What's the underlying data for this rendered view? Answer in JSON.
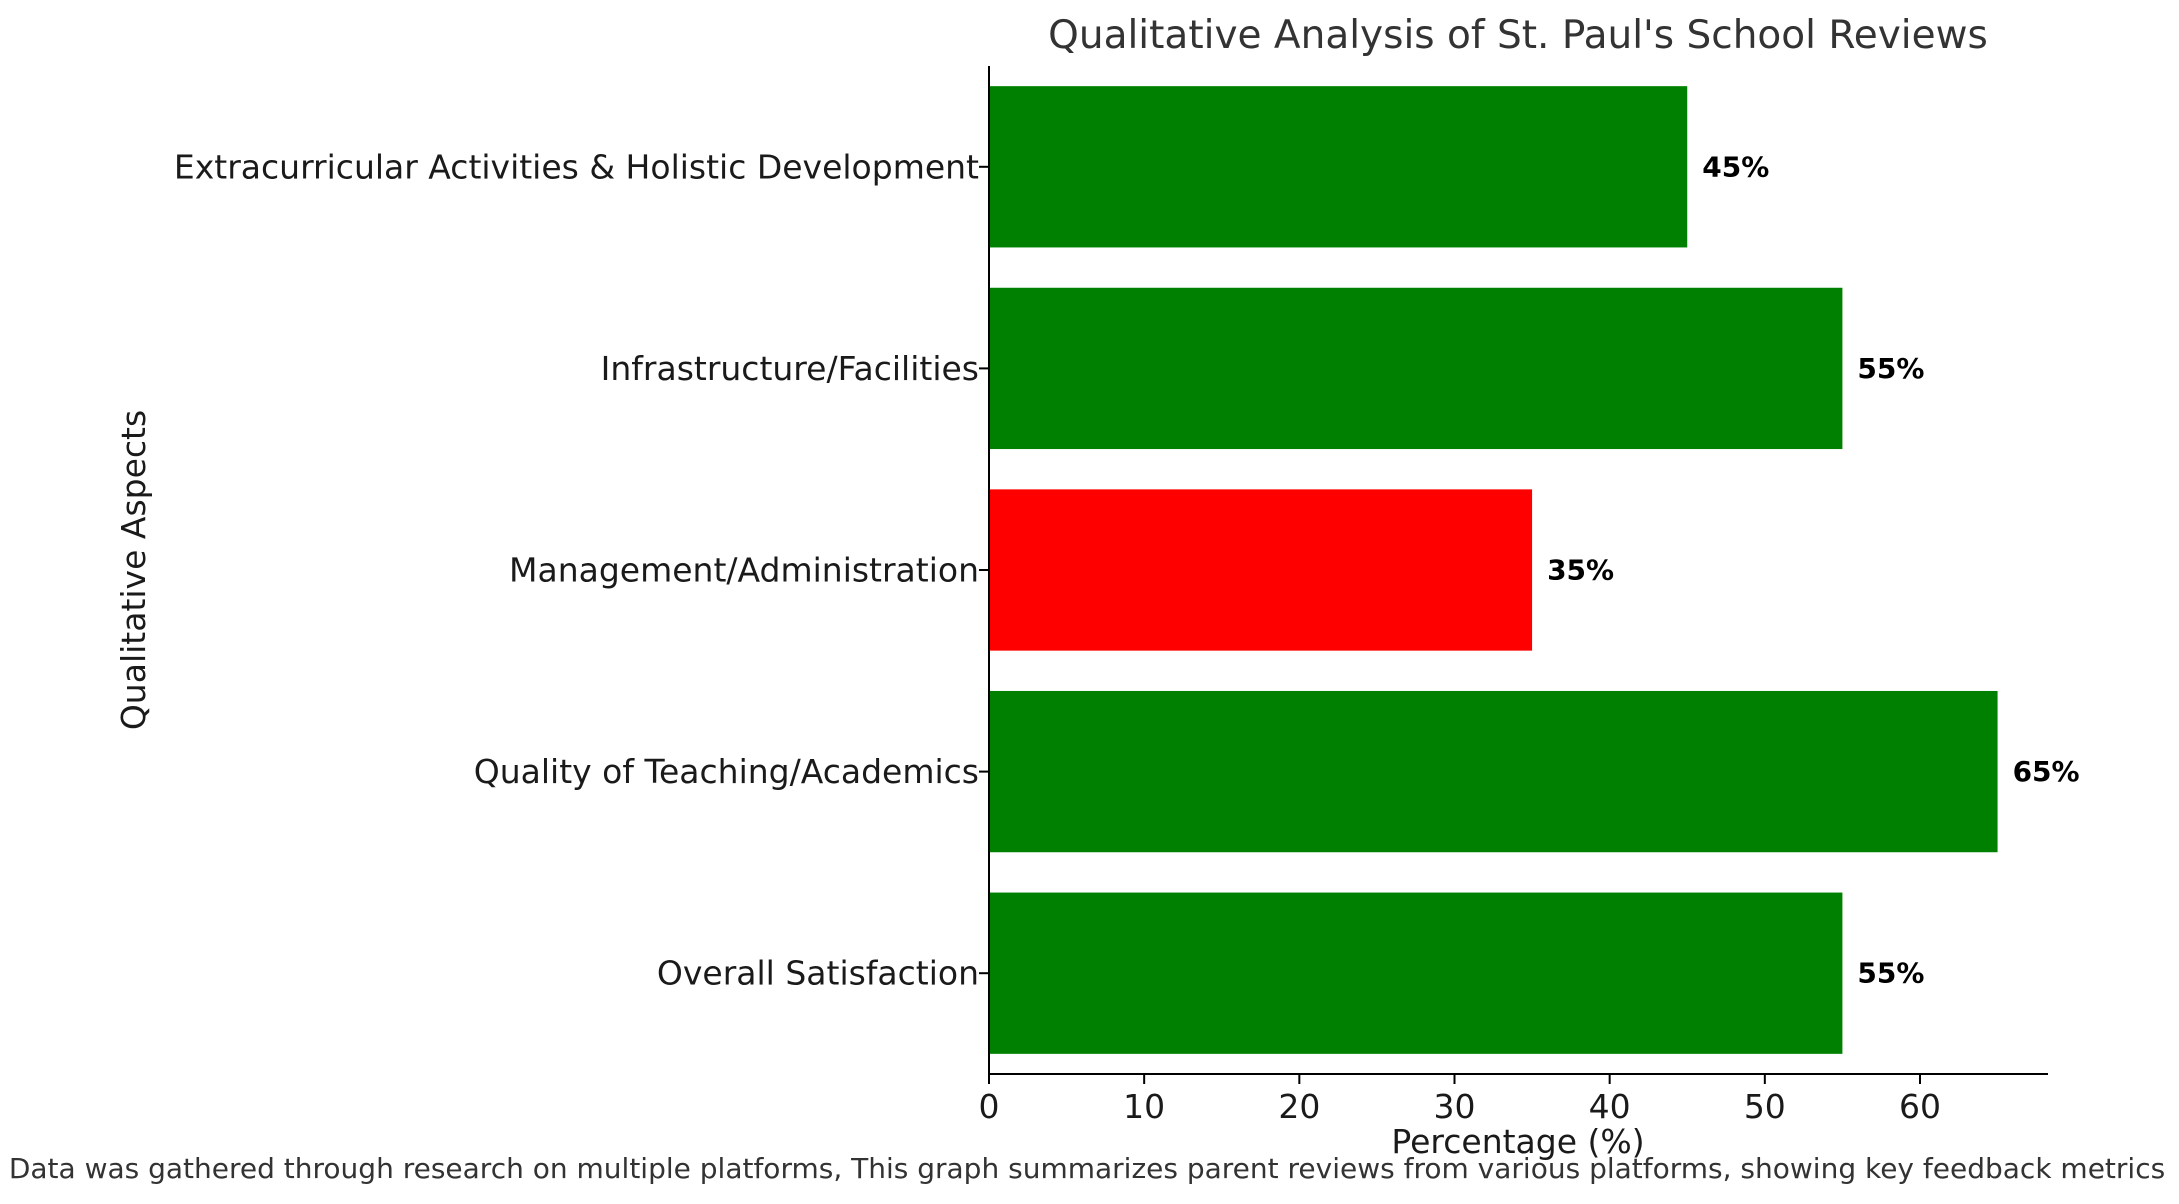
{
  "chart_data": {
    "type": "bar",
    "orientation": "horizontal",
    "title": "Qualitative Analysis of St. Paul's School Reviews",
    "xlabel": "Percentage (%)",
    "ylabel": "Qualitative Aspects",
    "categories": [
      "Overall Satisfaction",
      "Quality of Teaching/Academics",
      "Management/Administration",
      "Infrastructure/Facilities",
      "Extracurricular Activities & Holistic Development"
    ],
    "values": [
      55,
      65,
      35,
      55,
      45
    ],
    "value_labels": [
      "55%",
      "65%",
      "35%",
      "55%",
      "45%"
    ],
    "bar_colors": [
      "#008000",
      "#008000",
      "#ff0000",
      "#008000",
      "#008000"
    ],
    "xlim": [
      0,
      68.25
    ],
    "xticks": [
      0,
      10,
      20,
      30,
      40,
      50,
      60
    ],
    "grid": false,
    "legend": "none"
  },
  "footnote": "Data was gathered through research on multiple platforms, This graph summarizes parent reviews from various platforms, showing key feedback metrics"
}
